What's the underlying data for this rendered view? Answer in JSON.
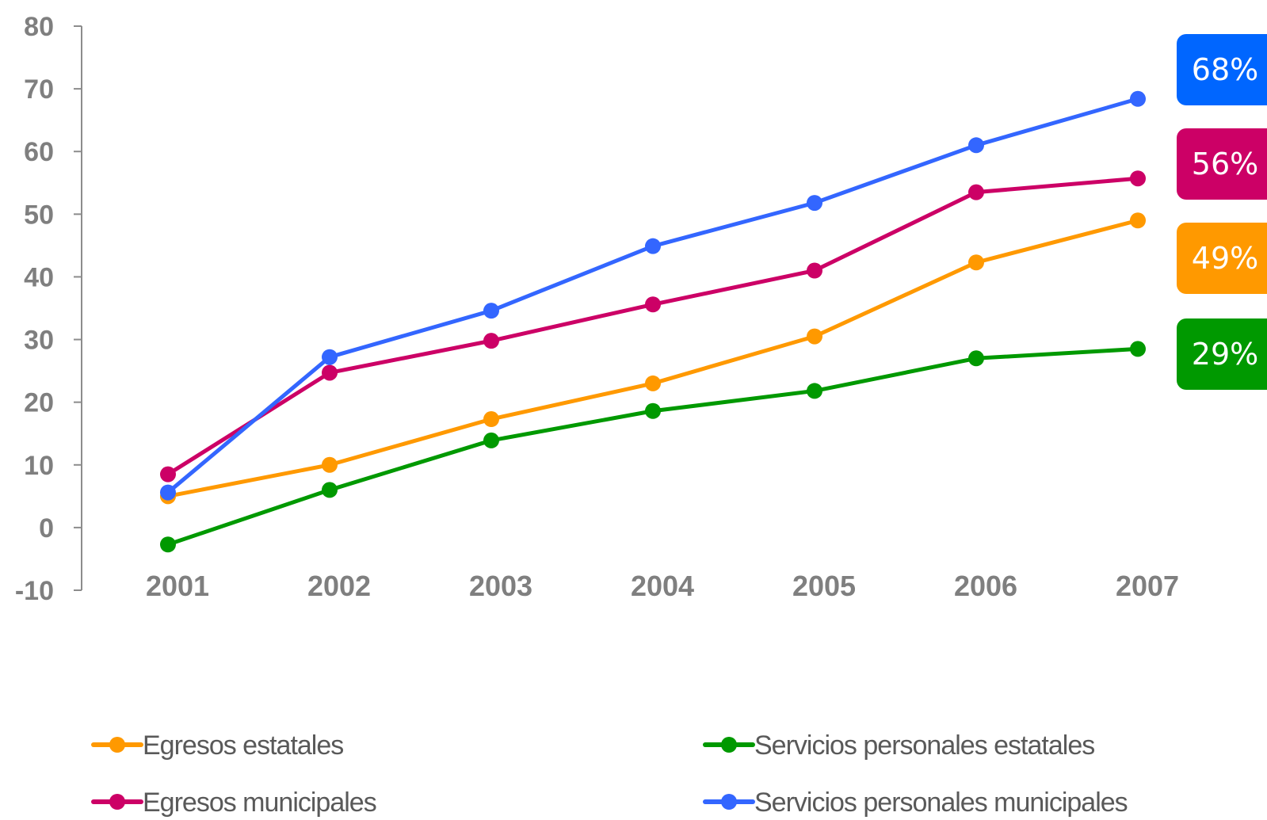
{
  "chart_data": {
    "type": "line",
    "categories": [
      "2001",
      "2002",
      "2003",
      "2004",
      "2005",
      "2006",
      "2007"
    ],
    "ylim": [
      -10,
      80
    ],
    "yticks": [
      80,
      70,
      60,
      50,
      40,
      30,
      20,
      10,
      0,
      -10
    ],
    "grid": false,
    "legend_position": "bottom",
    "series": [
      {
        "name": "Egresos estatales",
        "color": "#ff9900",
        "values": [
          5,
          10,
          17.3,
          23,
          30.5,
          42.3,
          49
        ],
        "end_label": "49%"
      },
      {
        "name": "Egresos municipales",
        "color": "#cc0066",
        "values": [
          8.5,
          24.7,
          29.8,
          35.6,
          41,
          53.5,
          55.7
        ],
        "end_label": "56%"
      },
      {
        "name": "Servicios personales estatales",
        "color": "#009900",
        "values": [
          -2.7,
          6,
          13.9,
          18.6,
          21.8,
          27,
          28.5
        ],
        "end_label": "29%"
      },
      {
        "name": "Servicios personales municipales",
        "color": "#3366ff",
        "values": [
          5.6,
          27.2,
          34.6,
          44.9,
          51.8,
          61,
          68.4
        ],
        "end_label": "68%"
      }
    ],
    "badge_colors": {
      "Servicios personales municipales": "#0066ff"
    }
  }
}
